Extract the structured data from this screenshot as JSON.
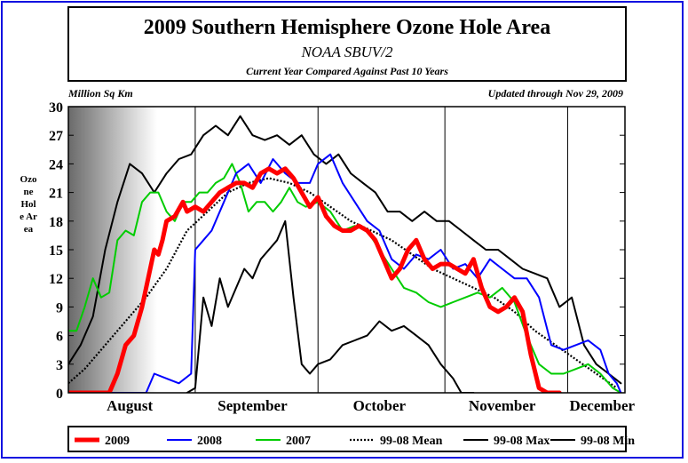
{
  "header": {
    "title": "2009 Southern Hemisphere Ozone Hole Area",
    "subtitle": "NOAA SBUV/2",
    "caption": "Current Year Compared Against Past 10 Years",
    "units_label": "Million Sq Km",
    "updated_label": "Updated through Nov 29, 2009",
    "ylabel": "Ozone Hole Area"
  },
  "chart_data": {
    "type": "line",
    "title": "2009 Southern Hemisphere Ozone Hole Area",
    "subtitle": "NOAA SBUV/2",
    "ylabel": "Ozone Hole Area",
    "yunits": "Million Sq Km",
    "ylim": [
      0,
      30
    ],
    "yticks": [
      0,
      3,
      6,
      9,
      12,
      15,
      18,
      21,
      24,
      27,
      30
    ],
    "ytick_labels": [
      "0",
      "3",
      "6",
      "9",
      "12",
      "15",
      "18",
      "21",
      "24",
      "27",
      "30"
    ],
    "xlim": [
      "Aug 1",
      "Dec 15"
    ],
    "month_labels": [
      "August",
      "September",
      "October",
      "November",
      "December"
    ],
    "grid": "vertical lines at month boundaries",
    "legend_position": "bottom",
    "series": [
      {
        "name": "2009",
        "color": "#ff0000",
        "style": "solid-thick",
        "points": [
          [
            "Aug 1",
            0
          ],
          [
            "Aug 4",
            0
          ],
          [
            "Aug 8",
            0
          ],
          [
            "Aug 11",
            0
          ],
          [
            "Aug 13",
            2
          ],
          [
            "Aug 15",
            5
          ],
          [
            "Aug 17",
            6
          ],
          [
            "Aug 19",
            9
          ],
          [
            "Aug 21",
            13
          ],
          [
            "Aug 22",
            15
          ],
          [
            "Aug 23",
            14.5
          ],
          [
            "Aug 24",
            16
          ],
          [
            "Aug 25",
            18
          ],
          [
            "Aug 27",
            18.5
          ],
          [
            "Aug 29",
            20
          ],
          [
            "Aug 30",
            19
          ],
          [
            "Sep 1",
            19.5
          ],
          [
            "Sep 3",
            19
          ],
          [
            "Sep 5",
            20
          ],
          [
            "Sep 7",
            21
          ],
          [
            "Sep 9",
            21.5
          ],
          [
            "Sep 11",
            22
          ],
          [
            "Sep 13",
            22
          ],
          [
            "Sep 15",
            21.5
          ],
          [
            "Sep 17",
            23
          ],
          [
            "Sep 19",
            23.5
          ],
          [
            "Sep 21",
            23
          ],
          [
            "Sep 23",
            23.5
          ],
          [
            "Sep 25",
            22.5
          ],
          [
            "Sep 27",
            21
          ],
          [
            "Sep 29",
            19.5
          ],
          [
            "Oct 1",
            20.5
          ],
          [
            "Oct 3",
            18.5
          ],
          [
            "Oct 5",
            17.5
          ],
          [
            "Oct 7",
            17
          ],
          [
            "Oct 9",
            17
          ],
          [
            "Oct 11",
            17.5
          ],
          [
            "Oct 13",
            17
          ],
          [
            "Oct 15",
            16
          ],
          [
            "Oct 17",
            14
          ],
          [
            "Oct 19",
            12
          ],
          [
            "Oct 21",
            13
          ],
          [
            "Oct 23",
            15
          ],
          [
            "Oct 25",
            16
          ],
          [
            "Oct 27",
            14
          ],
          [
            "Oct 29",
            13
          ],
          [
            "Oct 31",
            13.5
          ],
          [
            "Nov 2",
            13.5
          ],
          [
            "Nov 4",
            13
          ],
          [
            "Nov 6",
            12.5
          ],
          [
            "Nov 8",
            14
          ],
          [
            "Nov 10",
            11
          ],
          [
            "Nov 12",
            9
          ],
          [
            "Nov 14",
            8.5
          ],
          [
            "Nov 16",
            9
          ],
          [
            "Nov 18",
            10
          ],
          [
            "Nov 20",
            8.5
          ],
          [
            "Nov 22",
            4
          ],
          [
            "Nov 24",
            0.5
          ],
          [
            "Nov 26",
            0
          ],
          [
            "Nov 29",
            0
          ]
        ]
      },
      {
        "name": "2008",
        "color": "#0000ff",
        "style": "solid",
        "points": [
          [
            "Aug 1",
            0
          ],
          [
            "Aug 10",
            0
          ],
          [
            "Aug 20",
            0
          ],
          [
            "Aug 22",
            2
          ],
          [
            "Aug 25",
            1.5
          ],
          [
            "Aug 28",
            1
          ],
          [
            "Aug 31",
            2
          ],
          [
            "Sep 1",
            15
          ],
          [
            "Sep 3",
            16
          ],
          [
            "Sep 5",
            17
          ],
          [
            "Sep 8",
            20
          ],
          [
            "Sep 11",
            23
          ],
          [
            "Sep 14",
            24
          ],
          [
            "Sep 17",
            22
          ],
          [
            "Sep 20",
            24.5
          ],
          [
            "Sep 23",
            23
          ],
          [
            "Sep 26",
            22
          ],
          [
            "Sep 29",
            22
          ],
          [
            "Oct 1",
            24
          ],
          [
            "Oct 4",
            25
          ],
          [
            "Oct 7",
            22
          ],
          [
            "Oct 10",
            20
          ],
          [
            "Oct 13",
            18
          ],
          [
            "Oct 16",
            17
          ],
          [
            "Oct 19",
            14
          ],
          [
            "Oct 22",
            13
          ],
          [
            "Oct 25",
            14.5
          ],
          [
            "Oct 28",
            14
          ],
          [
            "Oct 31",
            15
          ],
          [
            "Nov 3",
            13
          ],
          [
            "Nov 6",
            13.5
          ],
          [
            "Nov 9",
            12
          ],
          [
            "Nov 12",
            14
          ],
          [
            "Nov 15",
            13
          ],
          [
            "Nov 18",
            12
          ],
          [
            "Nov 21",
            12
          ],
          [
            "Nov 24",
            10
          ],
          [
            "Nov 27",
            5
          ],
          [
            "Nov 30",
            4.5
          ],
          [
            "Dec 3",
            5
          ],
          [
            "Dec 6",
            5.5
          ],
          [
            "Dec 9",
            4.5
          ],
          [
            "Dec 11",
            2
          ],
          [
            "Dec 13",
            1
          ],
          [
            "Dec 14",
            0
          ]
        ]
      },
      {
        "name": "2007",
        "color": "#00cc00",
        "style": "solid",
        "points": [
          [
            "Aug 1",
            6.5
          ],
          [
            "Aug 3",
            6.5
          ],
          [
            "Aug 5",
            9
          ],
          [
            "Aug 7",
            12
          ],
          [
            "Aug 9",
            10
          ],
          [
            "Aug 11",
            10.5
          ],
          [
            "Aug 13",
            16
          ],
          [
            "Aug 15",
            17
          ],
          [
            "Aug 17",
            16.5
          ],
          [
            "Aug 19",
            20
          ],
          [
            "Aug 21",
            21
          ],
          [
            "Aug 23",
            21
          ],
          [
            "Aug 25",
            19
          ],
          [
            "Aug 27",
            18
          ],
          [
            "Aug 29",
            20
          ],
          [
            "Aug 31",
            20
          ],
          [
            "Sep 2",
            21
          ],
          [
            "Sep 4",
            21
          ],
          [
            "Sep 6",
            22
          ],
          [
            "Sep 8",
            22.5
          ],
          [
            "Sep 10",
            24
          ],
          [
            "Sep 12",
            22
          ],
          [
            "Sep 14",
            19
          ],
          [
            "Sep 16",
            20
          ],
          [
            "Sep 18",
            20
          ],
          [
            "Sep 20",
            19
          ],
          [
            "Sep 22",
            20
          ],
          [
            "Sep 24",
            21.5
          ],
          [
            "Sep 26",
            20
          ],
          [
            "Sep 28",
            19.5
          ],
          [
            "Oct 1",
            20
          ],
          [
            "Oct 4",
            19
          ],
          [
            "Oct 7",
            17
          ],
          [
            "Oct 10",
            17.5
          ],
          [
            "Oct 13",
            17
          ],
          [
            "Oct 16",
            15
          ],
          [
            "Oct 19",
            13
          ],
          [
            "Oct 22",
            11
          ],
          [
            "Oct 25",
            10.5
          ],
          [
            "Oct 28",
            9.5
          ],
          [
            "Oct 31",
            9
          ],
          [
            "Nov 3",
            9.5
          ],
          [
            "Nov 6",
            10
          ],
          [
            "Nov 9",
            10.5
          ],
          [
            "Nov 12",
            10
          ],
          [
            "Nov 15",
            11
          ],
          [
            "Nov 18",
            9.5
          ],
          [
            "Nov 21",
            6
          ],
          [
            "Nov 24",
            3
          ],
          [
            "Nov 27",
            2
          ],
          [
            "Nov 30",
            2
          ],
          [
            "Dec 3",
            2.5
          ],
          [
            "Dec 6",
            3
          ],
          [
            "Dec 9",
            2
          ],
          [
            "Dec 12",
            0.5
          ],
          [
            "Dec 14",
            0
          ]
        ]
      },
      {
        "name": "99-08 Mean",
        "color": "#000000",
        "style": "dotted",
        "points": [
          [
            "Aug 1",
            1
          ],
          [
            "Aug 5",
            2.5
          ],
          [
            "Aug 10",
            5
          ],
          [
            "Aug 15",
            7.5
          ],
          [
            "Aug 20",
            10
          ],
          [
            "Aug 25",
            13
          ],
          [
            "Aug 30",
            17
          ],
          [
            "Sep 4",
            19
          ],
          [
            "Sep 9",
            21
          ],
          [
            "Sep 14",
            22
          ],
          [
            "Sep 19",
            22.5
          ],
          [
            "Sep 24",
            22
          ],
          [
            "Sep 29",
            21
          ],
          [
            "Oct 4",
            19.5
          ],
          [
            "Oct 9",
            18
          ],
          [
            "Oct 14",
            17
          ],
          [
            "Oct 19",
            16
          ],
          [
            "Oct 24",
            14.5
          ],
          [
            "Oct 29",
            13
          ],
          [
            "Nov 3",
            12
          ],
          [
            "Nov 8",
            11
          ],
          [
            "Nov 13",
            10
          ],
          [
            "Nov 18",
            8.5
          ],
          [
            "Nov 23",
            6.5
          ],
          [
            "Nov 28",
            5
          ],
          [
            "Dec 3",
            3.5
          ],
          [
            "Dec 8",
            2
          ],
          [
            "Dec 13",
            0.5
          ]
        ]
      },
      {
        "name": "99-08 Max",
        "color": "#000000",
        "style": "solid",
        "points": [
          [
            "Aug 1",
            3
          ],
          [
            "Aug 4",
            5
          ],
          [
            "Aug 7",
            8
          ],
          [
            "Aug 10",
            15
          ],
          [
            "Aug 13",
            20
          ],
          [
            "Aug 16",
            24
          ],
          [
            "Aug 19",
            23
          ],
          [
            "Aug 22",
            21
          ],
          [
            "Aug 25",
            23
          ],
          [
            "Aug 28",
            24.5
          ],
          [
            "Aug 31",
            25
          ],
          [
            "Sep 3",
            27
          ],
          [
            "Sep 6",
            28
          ],
          [
            "Sep 9",
            27
          ],
          [
            "Sep 12",
            29
          ],
          [
            "Sep 15",
            27
          ],
          [
            "Sep 18",
            26.5
          ],
          [
            "Sep 21",
            27
          ],
          [
            "Sep 24",
            26
          ],
          [
            "Sep 27",
            27
          ],
          [
            "Sep 30",
            25
          ],
          [
            "Oct 3",
            24
          ],
          [
            "Oct 6",
            25
          ],
          [
            "Oct 9",
            23
          ],
          [
            "Oct 12",
            22
          ],
          [
            "Oct 15",
            21
          ],
          [
            "Oct 18",
            19
          ],
          [
            "Oct 21",
            19
          ],
          [
            "Oct 24",
            18
          ],
          [
            "Oct 27",
            19
          ],
          [
            "Oct 30",
            18
          ],
          [
            "Nov 2",
            18
          ],
          [
            "Nov 5",
            17
          ],
          [
            "Nov 8",
            16
          ],
          [
            "Nov 11",
            15
          ],
          [
            "Nov 14",
            15
          ],
          [
            "Nov 17",
            14
          ],
          [
            "Nov 20",
            13
          ],
          [
            "Nov 23",
            12.5
          ],
          [
            "Nov 26",
            12
          ],
          [
            "Nov 29",
            9
          ],
          [
            "Dec 2",
            10
          ],
          [
            "Dec 5",
            5
          ],
          [
            "Dec 8",
            3
          ],
          [
            "Dec 11",
            2
          ],
          [
            "Dec 14",
            1
          ]
        ]
      },
      {
        "name": "99-08 Min",
        "color": "#000000",
        "style": "solid",
        "points": [
          [
            "Aug 30",
            0
          ],
          [
            "Sep 1",
            0.5
          ],
          [
            "Sep 3",
            10
          ],
          [
            "Sep 5",
            7
          ],
          [
            "Sep 7",
            12
          ],
          [
            "Sep 9",
            9
          ],
          [
            "Sep 11",
            11
          ],
          [
            "Sep 13",
            13
          ],
          [
            "Sep 15",
            12
          ],
          [
            "Sep 17",
            14
          ],
          [
            "Sep 19",
            15
          ],
          [
            "Sep 21",
            16
          ],
          [
            "Sep 23",
            18
          ],
          [
            "Sep 25",
            10
          ],
          [
            "Sep 27",
            3
          ],
          [
            "Sep 29",
            2
          ],
          [
            "Oct 1",
            3
          ],
          [
            "Oct 4",
            3.5
          ],
          [
            "Oct 7",
            5
          ],
          [
            "Oct 10",
            5.5
          ],
          [
            "Oct 13",
            6
          ],
          [
            "Oct 16",
            7.5
          ],
          [
            "Oct 19",
            6.5
          ],
          [
            "Oct 22",
            7
          ],
          [
            "Oct 25",
            6
          ],
          [
            "Oct 28",
            5
          ],
          [
            "Oct 31",
            3
          ],
          [
            "Nov 3",
            1.5
          ],
          [
            "Nov 5",
            0
          ],
          [
            "Nov 8",
            0
          ]
        ]
      }
    ]
  },
  "legend": [
    {
      "label": "2009",
      "color": "#ff0000",
      "style": "solid-thick"
    },
    {
      "label": "2008",
      "color": "#0000ff",
      "style": "solid"
    },
    {
      "label": "2007",
      "color": "#00cc00",
      "style": "solid"
    },
    {
      "label": "99-08 Mean",
      "color": "#000000",
      "style": "dotted"
    },
    {
      "label": "99-08 Max",
      "color": "#000000",
      "style": "solid"
    },
    {
      "label": "99-08 Min",
      "color": "#000000",
      "style": "solid"
    }
  ]
}
